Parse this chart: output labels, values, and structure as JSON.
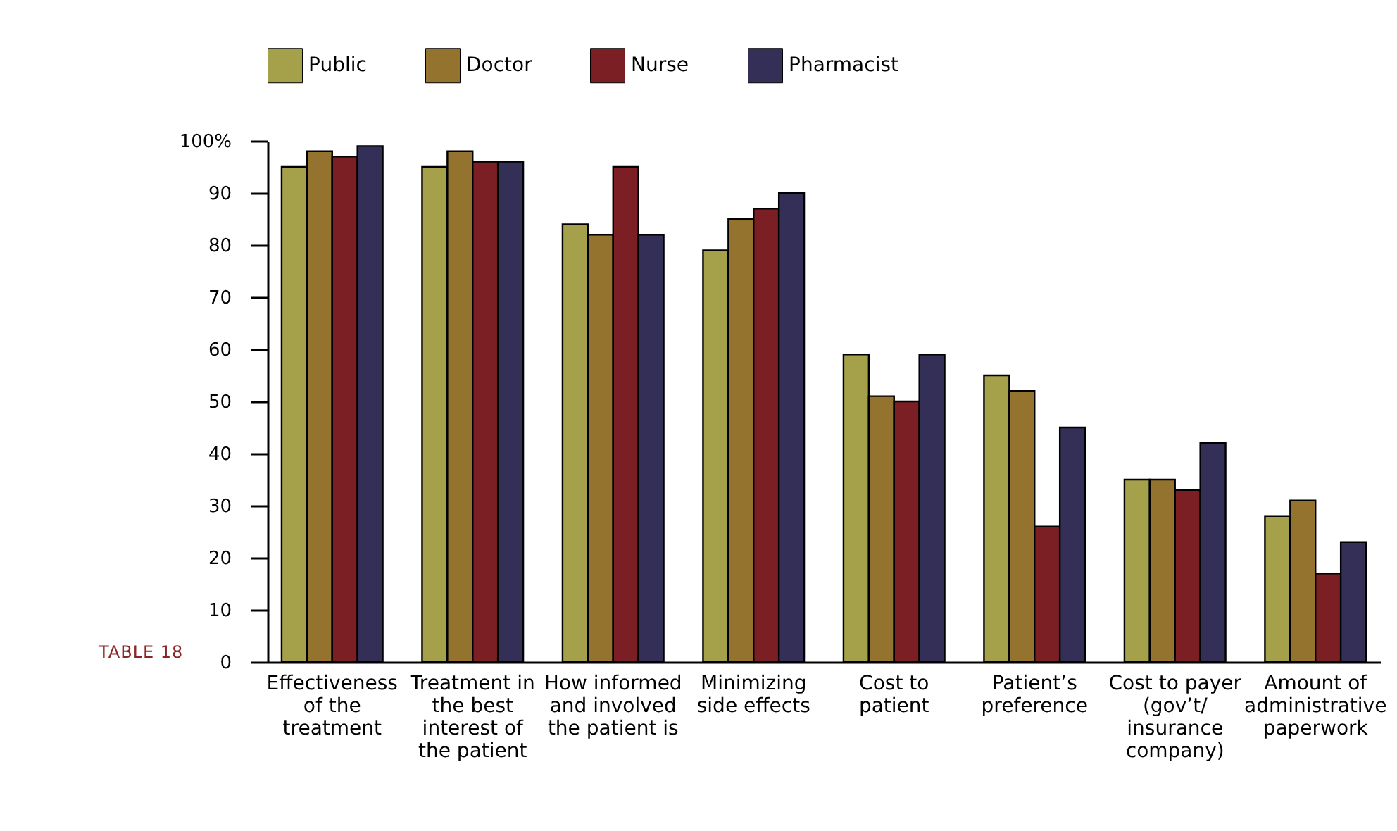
{
  "chart_data": {
    "type": "bar",
    "categories": [
      "Effectiveness of the treatment",
      "Treatment in the best interest of the patient",
      "How informed and involved the patient is",
      "Minimizing side effects",
      "Cost to patient",
      "Patient’s preference",
      "Cost to payer (gov’t/ insurance company)",
      "Amount of administrative paperwork"
    ],
    "series": [
      {
        "name": "Public",
        "color": "#a5a04a",
        "values": [
          95,
          95,
          84,
          79,
          59,
          55,
          35,
          28
        ]
      },
      {
        "name": "Doctor",
        "color": "#94732f",
        "values": [
          98,
          98,
          82,
          85,
          51,
          52,
          35,
          31
        ]
      },
      {
        "name": "Nurse",
        "color": "#7b1f25",
        "values": [
          97,
          96,
          95,
          87,
          50,
          26,
          33,
          17
        ]
      },
      {
        "name": "Pharmacist",
        "color": "#332f57",
        "values": [
          99,
          96,
          82,
          90,
          59,
          45,
          42,
          23
        ]
      }
    ],
    "ylim": [
      0,
      100
    ],
    "yticks": [
      {
        "value": 0,
        "label": "0"
      },
      10,
      20,
      30,
      40,
      50,
      60,
      70,
      80,
      90,
      {
        "value": 100,
        "label": "100%"
      }
    ],
    "legend": "top",
    "grid": false,
    "annotations": [
      "TABLE 18"
    ]
  }
}
